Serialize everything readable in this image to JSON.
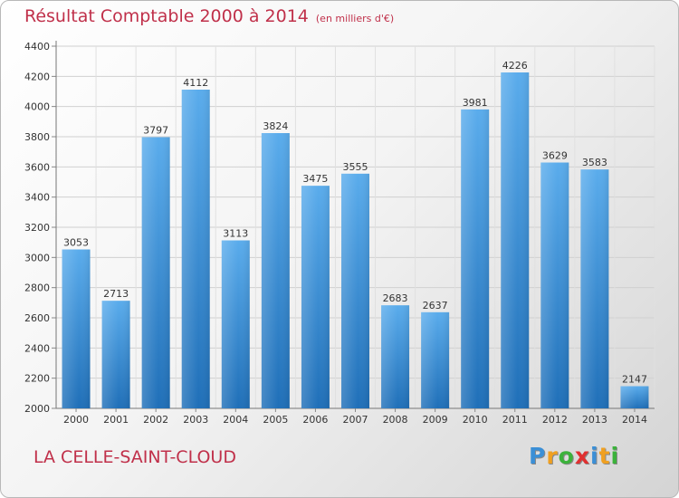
{
  "header": {
    "title": "Résultat Comptable 2000 à 2014",
    "unit": "(en milliers d'€)"
  },
  "footer": {
    "city": "LA CELLE-SAINT-CLOUD",
    "logo_letters": [
      "P",
      "r",
      "o",
      "x",
      "i",
      "t",
      "i"
    ],
    "logo_colors": [
      "#3b8fd6",
      "#f0a020",
      "#3bb23b",
      "#e03030",
      "#3b8fd6",
      "#f0a020",
      "#3bb23b"
    ]
  },
  "chart_data": {
    "type": "bar",
    "title": "Résultat Comptable 2000 à 2014",
    "subtitle": "(en milliers d'€)",
    "xlabel": "",
    "ylabel": "",
    "categories": [
      "2000",
      "2001",
      "2002",
      "2003",
      "2004",
      "2005",
      "2006",
      "2007",
      "2008",
      "2009",
      "2010",
      "2011",
      "2012",
      "2013",
      "2014"
    ],
    "values": [
      3053,
      2713,
      3797,
      4112,
      3113,
      3824,
      3475,
      3555,
      2683,
      2637,
      3981,
      4226,
      3629,
      3583,
      2147
    ],
    "ylim": [
      2000,
      4400
    ],
    "yticks": [
      2000,
      2200,
      2400,
      2600,
      2800,
      3000,
      3200,
      3400,
      3600,
      3800,
      4000,
      4200,
      4400
    ],
    "grid": true,
    "legend": "none",
    "bar_color": "#3a8fd8"
  }
}
